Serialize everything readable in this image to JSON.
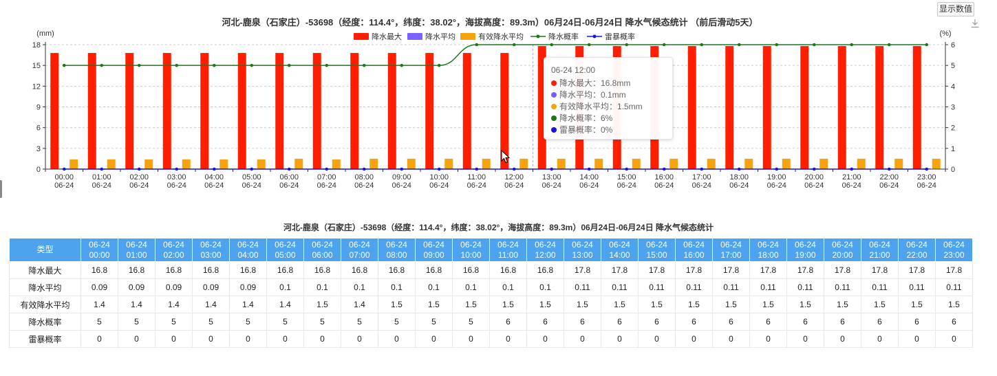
{
  "toolbar": {
    "show_values_label": "显示数值",
    "download_icon": "download-icon"
  },
  "tooltip": {
    "title": "06-24 12:00",
    "rows": [
      {
        "label": "降水最大：16.8mm",
        "color": "#ff1f00"
      },
      {
        "label": "降水平均：0.1mm",
        "color": "#7b61ff"
      },
      {
        "label": "有效降水平均：1.5mm",
        "color": "#f5a30f"
      },
      {
        "label": "降水概率：6%",
        "color": "#1a7a1a"
      },
      {
        "label": "雷暴概率：0%",
        "color": "#1414e6"
      }
    ]
  },
  "chart_data": {
    "type": "bar",
    "title": "河北-鹿泉（石家庄）-53698（经度：114.4°，纬度：38.02°，海拔高度：89.3m）06月24日-06月24日 降水气候态统计 （前后滑动5天）",
    "ylabel_left": "(mm)",
    "ylabel_right": "(%)",
    "ylim_left": [
      0,
      18
    ],
    "yticks_left": [
      "0",
      "3",
      "6",
      "9",
      "12",
      "15",
      "18"
    ],
    "ylim_right": [
      0,
      6
    ],
    "yticks_right": [
      "0",
      "1",
      "2",
      "3",
      "4",
      "5",
      "6"
    ],
    "categories": [
      "00:00\n06-24",
      "01:00\n06-24",
      "02:00\n06-24",
      "03:00\n06-24",
      "04:00\n06-24",
      "05:00\n06-24",
      "06:00\n06-24",
      "07:00\n06-24",
      "08:00\n06-24",
      "09:00\n06-24",
      "10:00\n06-24",
      "11:00\n06-24",
      "12:00\n06-24",
      "13:00\n06-24",
      "14:00\n06-24",
      "15:00\n06-24",
      "16:00\n06-24",
      "17:00\n06-24",
      "18:00\n06-24",
      "19:00\n06-24",
      "20:00\n06-24",
      "21:00\n06-24",
      "22:00\n06-24",
      "23:00\n06-24"
    ],
    "legend_position": "top-center",
    "series": [
      {
        "name": "降水最大",
        "type": "bar",
        "axis": "left",
        "color": "#ff1f00",
        "values": [
          16.8,
          16.8,
          16.8,
          16.8,
          16.8,
          16.8,
          16.8,
          16.8,
          16.8,
          16.8,
          16.8,
          16.8,
          16.8,
          17.8,
          17.8,
          17.8,
          17.8,
          17.8,
          17.8,
          17.8,
          17.8,
          17.8,
          17.8,
          17.8
        ]
      },
      {
        "name": "降水平均",
        "type": "bar",
        "axis": "left",
        "color": "#7b61ff",
        "values": [
          0.09,
          0.09,
          0.09,
          0.09,
          0.09,
          0.1,
          0.1,
          0.1,
          0.1,
          0.1,
          0.1,
          0.1,
          0.1,
          0.11,
          0.11,
          0.11,
          0.11,
          0.11,
          0.11,
          0.11,
          0.11,
          0.11,
          0.11,
          0.11
        ]
      },
      {
        "name": "有效降水平均",
        "type": "bar",
        "axis": "left",
        "color": "#f5a30f",
        "values": [
          1.4,
          1.4,
          1.4,
          1.4,
          1.4,
          1.4,
          1.5,
          1.4,
          1.5,
          1.5,
          1.5,
          1.5,
          1.5,
          1.5,
          1.5,
          1.5,
          1.5,
          1.5,
          1.5,
          1.5,
          1.5,
          1.5,
          1.5,
          1.5
        ]
      },
      {
        "name": "降水概率",
        "type": "line",
        "axis": "right",
        "color": "#1a7a1a",
        "values": [
          5,
          5,
          5,
          5,
          5,
          5,
          5,
          5,
          5,
          5,
          5,
          6,
          6,
          6,
          6,
          6,
          6,
          6,
          6,
          6,
          6,
          6,
          6,
          6
        ]
      },
      {
        "name": "雷暴概率",
        "type": "line",
        "axis": "right",
        "color": "#1414e6",
        "values": [
          0,
          0,
          0,
          0,
          0,
          0,
          0,
          0,
          0,
          0,
          0,
          0,
          0,
          0,
          0,
          0,
          0,
          0,
          0,
          0,
          0,
          0,
          0,
          0
        ]
      }
    ],
    "highlight_category": "12:00"
  },
  "table": {
    "title": "河北-鹿泉（石家庄）-53698（经度：114.4°，纬度：38.02°，海拔高度：89.3m）06月24日-06月24日 降水气候态统计",
    "header_first": "类型",
    "headers": [
      "06-24\n00:00",
      "06-24\n01:00",
      "06-24\n02:00",
      "06-24\n03:00",
      "06-24\n04:00",
      "06-24\n05:00",
      "06-24\n06:00",
      "06-24\n07:00",
      "06-24\n08:00",
      "06-24\n09:00",
      "06-24\n10:00",
      "06-24\n11:00",
      "06-24\n12:00",
      "06-24\n13:00",
      "06-24\n14:00",
      "06-24\n15:00",
      "06-24\n16:00",
      "06-24\n17:00",
      "06-24\n18:00",
      "06-24\n19:00",
      "06-24\n20:00",
      "06-24\n21:00",
      "06-24\n22:00",
      "06-24\n23:00"
    ],
    "rows": [
      {
        "label": "降水最大",
        "cells": [
          "16.8",
          "16.8",
          "16.8",
          "16.8",
          "16.8",
          "16.8",
          "16.8",
          "16.8",
          "16.8",
          "16.8",
          "16.8",
          "16.8",
          "16.8",
          "17.8",
          "17.8",
          "17.8",
          "17.8",
          "17.8",
          "17.8",
          "17.8",
          "17.8",
          "17.8",
          "17.8",
          "17.8"
        ]
      },
      {
        "label": "降水平均",
        "cells": [
          "0.09",
          "0.09",
          "0.09",
          "0.09",
          "0.09",
          "0.1",
          "0.1",
          "0.1",
          "0.1",
          "0.1",
          "0.1",
          "0.1",
          "0.1",
          "0.11",
          "0.11",
          "0.11",
          "0.11",
          "0.11",
          "0.11",
          "0.11",
          "0.11",
          "0.11",
          "0.11",
          "0.11"
        ]
      },
      {
        "label": "有效降水平均",
        "cells": [
          "1.4",
          "1.4",
          "1.4",
          "1.4",
          "1.4",
          "1.4",
          "1.5",
          "1.4",
          "1.5",
          "1.5",
          "1.5",
          "1.5",
          "1.5",
          "1.5",
          "1.5",
          "1.5",
          "1.5",
          "1.5",
          "1.5",
          "1.5",
          "1.5",
          "1.5",
          "1.5",
          "1.5"
        ]
      },
      {
        "label": "降水概率",
        "cells": [
          "5",
          "5",
          "5",
          "5",
          "5",
          "5",
          "5",
          "5",
          "5",
          "5",
          "5",
          "6",
          "6",
          "6",
          "6",
          "6",
          "6",
          "6",
          "6",
          "6",
          "6",
          "6",
          "6",
          "6"
        ]
      },
      {
        "label": "雷暴概率",
        "cells": [
          "0",
          "0",
          "0",
          "0",
          "0",
          "0",
          "0",
          "0",
          "0",
          "0",
          "0",
          "0",
          "0",
          "0",
          "0",
          "0",
          "0",
          "0",
          "0",
          "0",
          "0",
          "0",
          "0",
          "0"
        ]
      }
    ]
  }
}
